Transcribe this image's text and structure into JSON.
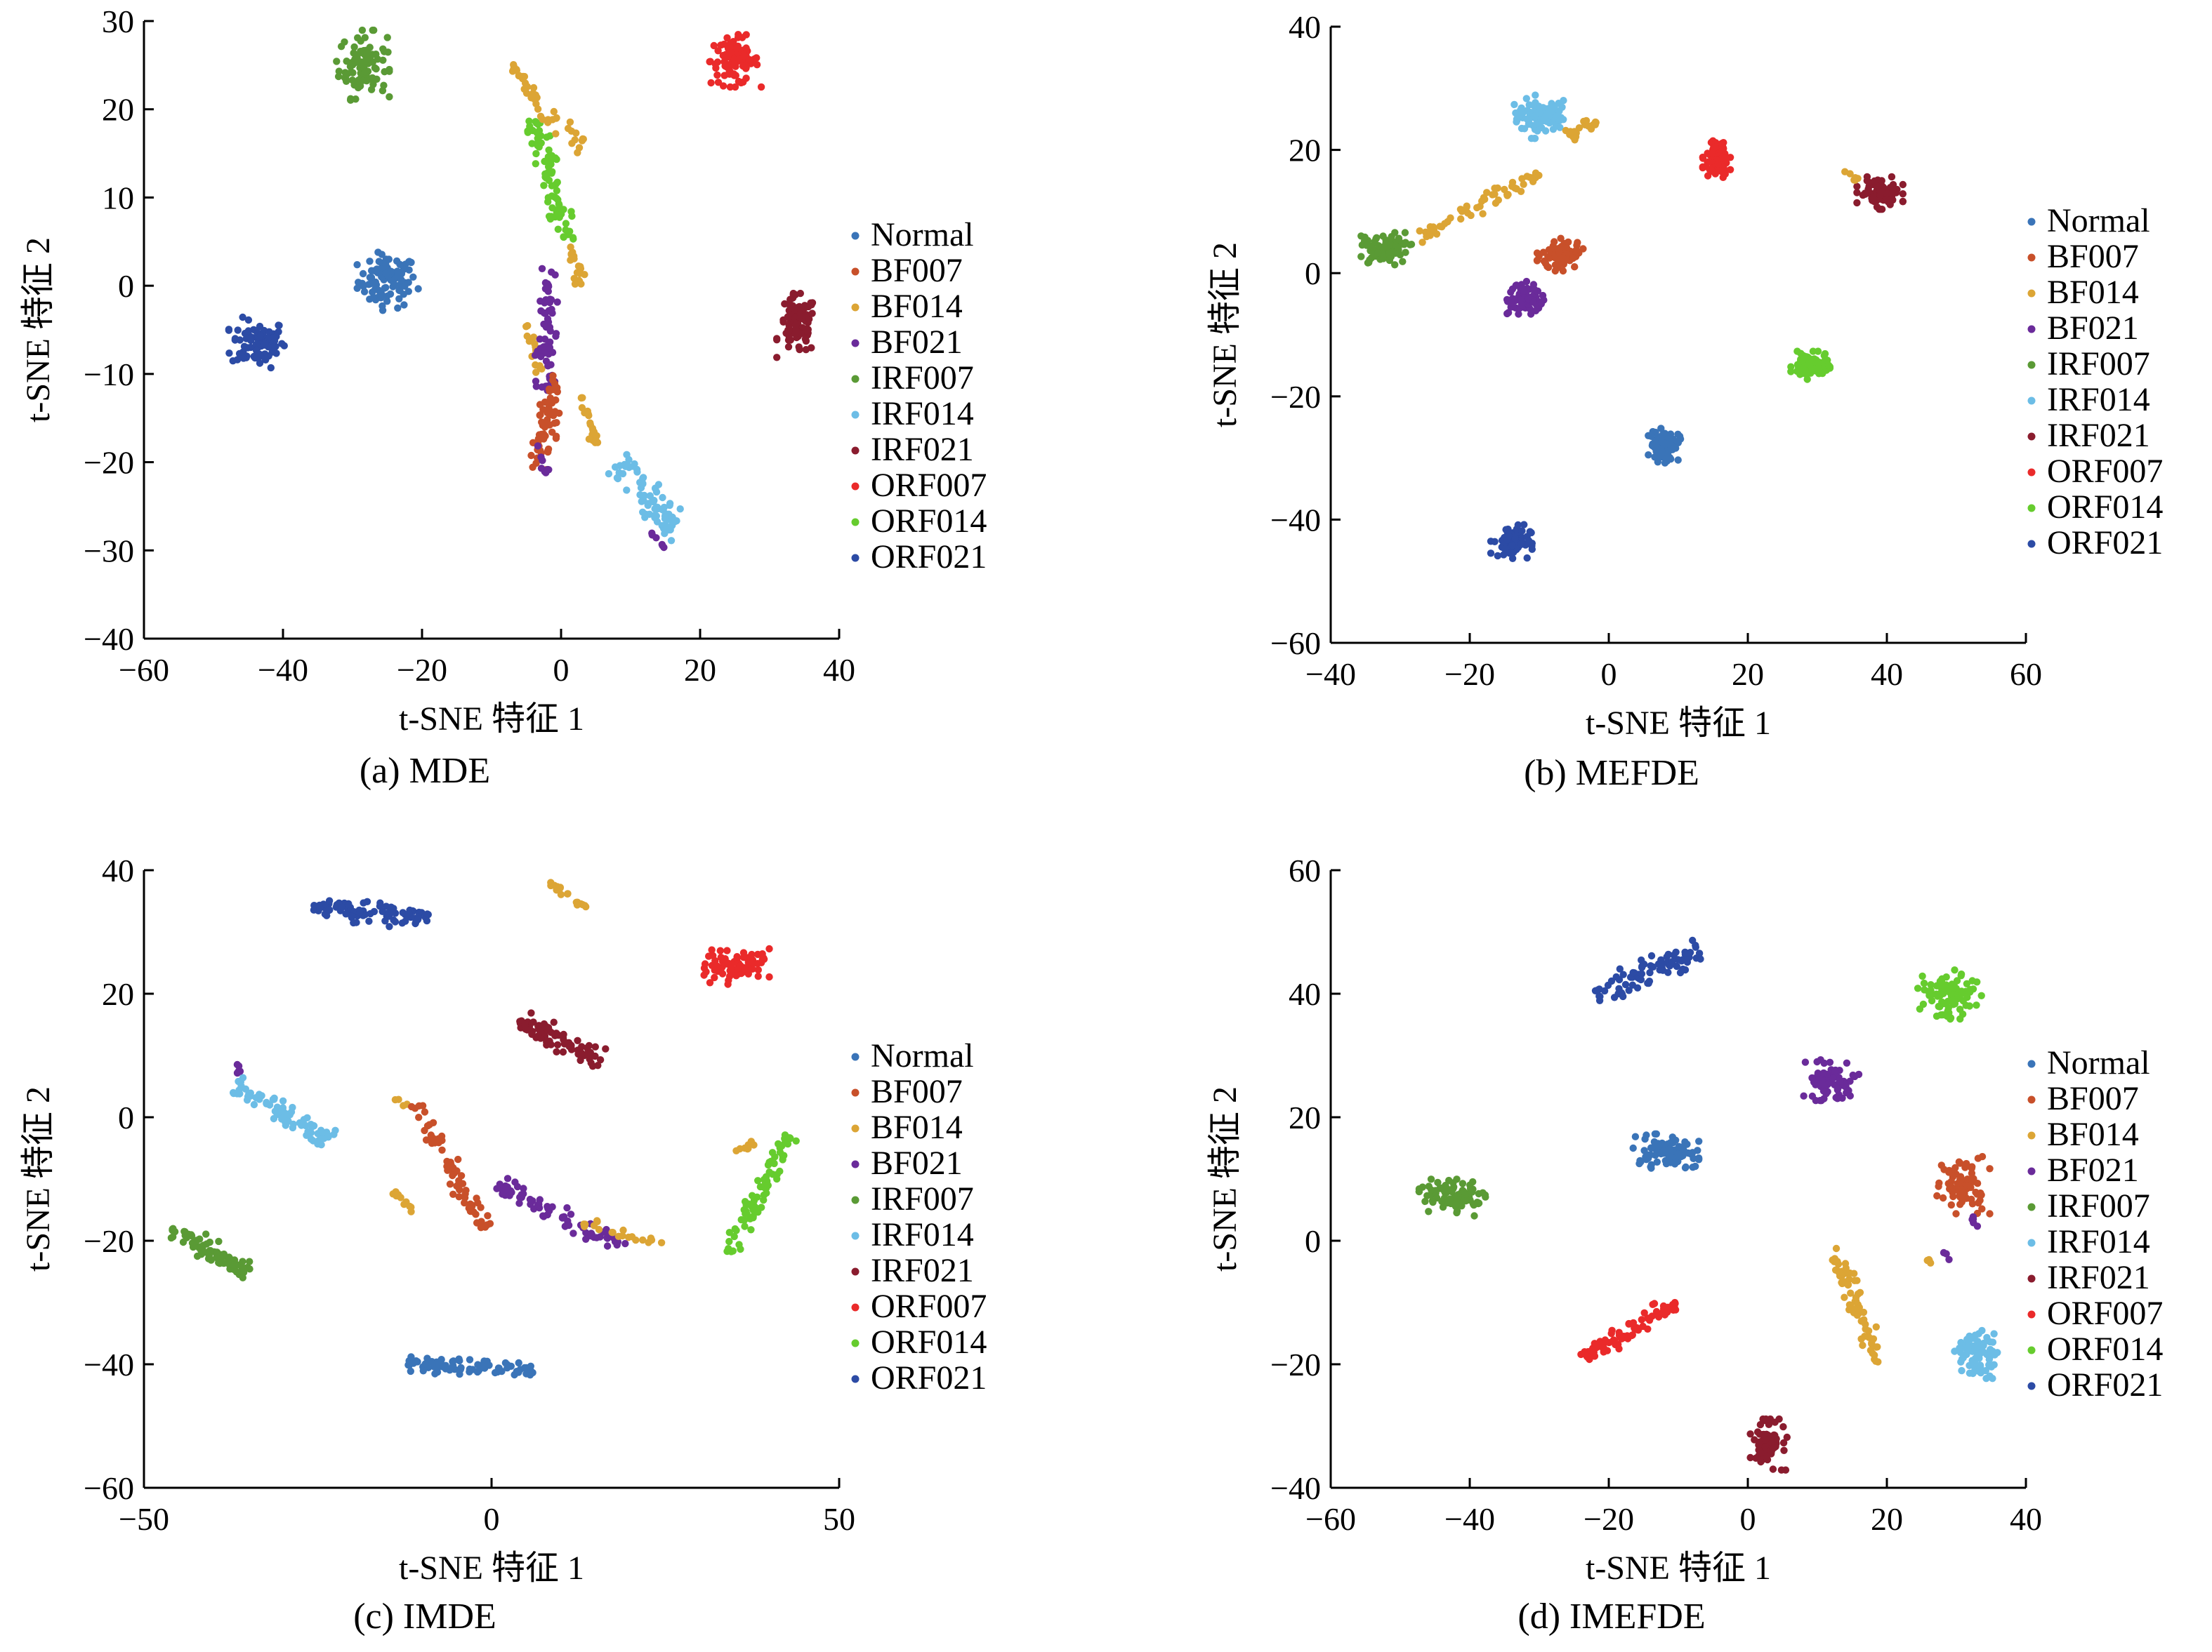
{
  "figure": {
    "series_names": [
      "Normal",
      "BF007",
      "BF014",
      "BF021",
      "IRF007",
      "IRF014",
      "IRF021",
      "ORF007",
      "ORF014",
      "ORF021"
    ],
    "series_colors": [
      "#3a74b8",
      "#c8502a",
      "#dca535",
      "#6a2b9a",
      "#5a9a35",
      "#6cbde6",
      "#8a1c2e",
      "#ea2a2a",
      "#66cc2e",
      "#2c4ba5"
    ]
  },
  "chart_data": [
    {
      "type": "scatter",
      "caption": "(a) MDE",
      "xlabel": "t-SNE 特征 1",
      "ylabel": "t-SNE 特征 2",
      "xlim": [
        -60,
        40
      ],
      "ylim": [
        -40,
        30
      ],
      "xticks": [
        -60,
        -40,
        -20,
        0,
        20,
        40
      ],
      "yticks": [
        -40,
        -30,
        -20,
        -10,
        0,
        10,
        20,
        30
      ],
      "xtick_labels": [
        "−60",
        "−40",
        "−20",
        "0",
        "20",
        "40"
      ],
      "ytick_labels": [
        "−40",
        "−30",
        "−20",
        "−10",
        "0",
        "10",
        "20",
        "30"
      ],
      "legend_position": "right",
      "clusters": [
        {
          "series": "Normal",
          "shape": "blob",
          "cx": -25,
          "cy": 0.5,
          "sx": 2.8,
          "sy": 2.0,
          "n": 90
        },
        {
          "series": "ORF021",
          "shape": "blob",
          "cx": -43.5,
          "cy": -6.5,
          "sx": 2.6,
          "sy": 1.8,
          "n": 90
        },
        {
          "series": "IRF007",
          "shape": "blob",
          "cx": -28.5,
          "cy": 25,
          "sx": 2.3,
          "sy": 2.4,
          "n": 90
        },
        {
          "series": "ORF007",
          "shape": "blob",
          "cx": 25,
          "cy": 25.5,
          "sx": 2.3,
          "sy": 1.8,
          "n": 90
        },
        {
          "series": "IRF021",
          "shape": "blob",
          "cx": 34,
          "cy": -4.5,
          "sx": 1.8,
          "sy": 2.2,
          "n": 90
        },
        {
          "series": "IRF014",
          "shape": "line",
          "x1": 8,
          "y1": -20,
          "x2": 17,
          "y2": -28,
          "w": 1.6,
          "n": 80
        },
        {
          "series": "BF021",
          "shape": "line",
          "x1": 13,
          "y1": -28,
          "x2": 15,
          "y2": -30,
          "w": 0.5,
          "n": 6
        },
        {
          "series": "ORF014",
          "shape": "line",
          "x1": -4,
          "y1": 19,
          "x2": 1,
          "y2": 5,
          "w": 1.2,
          "n": 80
        },
        {
          "series": "BF014",
          "shape": "line",
          "x1": -7,
          "y1": 25,
          "x2": -3,
          "y2": 20,
          "w": 0.6,
          "n": 25
        },
        {
          "series": "BF014",
          "shape": "line",
          "x1": -3,
          "y1": 20,
          "x2": 3,
          "y2": 16,
          "w": 0.9,
          "n": 20
        },
        {
          "series": "BF014",
          "shape": "line",
          "x1": 1,
          "y1": 5,
          "x2": 3,
          "y2": 0,
          "w": 0.8,
          "n": 18
        },
        {
          "series": "BF014",
          "shape": "line",
          "x1": -5,
          "y1": -4,
          "x2": -3,
          "y2": -10,
          "w": 0.7,
          "n": 15
        },
        {
          "series": "BF014",
          "shape": "line",
          "x1": 3,
          "y1": -12,
          "x2": 5,
          "y2": -18,
          "w": 0.7,
          "n": 20
        },
        {
          "series": "BF021",
          "shape": "line",
          "x1": -2,
          "y1": 2,
          "x2": -2,
          "y2": -12,
          "w": 1.3,
          "n": 65
        },
        {
          "series": "BF007",
          "shape": "line",
          "x1": -1,
          "y1": -10,
          "x2": -3,
          "y2": -21,
          "w": 1.2,
          "n": 60
        },
        {
          "series": "BF021",
          "shape": "line",
          "x1": -3,
          "y1": -18,
          "x2": -2,
          "y2": -22,
          "w": 0.6,
          "n": 8
        }
      ]
    },
    {
      "type": "scatter",
      "caption": "(b) MEFDE",
      "xlabel": "t-SNE 特征 1",
      "ylabel": "t-SNE 特征 2",
      "xlim": [
        -40,
        60
      ],
      "ylim": [
        -60,
        40
      ],
      "xticks": [
        -40,
        -20,
        0,
        20,
        40,
        60
      ],
      "yticks": [
        -60,
        -40,
        -20,
        0,
        20,
        40
      ],
      "xtick_labels": [
        "−40",
        "−20",
        "0",
        "20",
        "40",
        "60"
      ],
      "ytick_labels": [
        "−60",
        "−40",
        "−20",
        "0",
        "20",
        "40"
      ],
      "legend_position": "right",
      "clusters": [
        {
          "series": "IRF014",
          "shape": "blob",
          "cx": -10,
          "cy": 25.5,
          "sx": 2.4,
          "sy": 2.2,
          "n": 90
        },
        {
          "series": "BF014",
          "shape": "line",
          "x1": -6,
          "y1": 22,
          "x2": -2,
          "y2": 25,
          "w": 0.8,
          "n": 18
        },
        {
          "series": "BF014",
          "shape": "line",
          "x1": -28,
          "y1": 5,
          "x2": -10,
          "y2": 16,
          "w": 1.1,
          "n": 55
        },
        {
          "series": "IRF007",
          "shape": "blob",
          "cx": -32,
          "cy": 4,
          "sx": 2.2,
          "sy": 1.6,
          "n": 85
        },
        {
          "series": "BF007",
          "shape": "blob",
          "cx": -7,
          "cy": 3,
          "sx": 2.0,
          "sy": 1.6,
          "n": 75
        },
        {
          "series": "BF021",
          "shape": "blob",
          "cx": -12,
          "cy": -4,
          "sx": 1.6,
          "sy": 1.6,
          "n": 65
        },
        {
          "series": "ORF007",
          "shape": "blob",
          "cx": 15.5,
          "cy": 18.5,
          "sx": 1.2,
          "sy": 1.8,
          "n": 85
        },
        {
          "series": "IRF021",
          "shape": "blob",
          "cx": 39,
          "cy": 13,
          "sx": 2.0,
          "sy": 1.6,
          "n": 85
        },
        {
          "series": "BF014",
          "shape": "line",
          "x1": 34,
          "y1": 17,
          "x2": 36,
          "y2": 15,
          "w": 0.5,
          "n": 6
        },
        {
          "series": "ORF014",
          "shape": "blob",
          "cx": 29,
          "cy": -15,
          "sx": 1.7,
          "sy": 1.4,
          "n": 85
        },
        {
          "series": "Normal",
          "shape": "blob",
          "cx": 8,
          "cy": -28,
          "sx": 1.4,
          "sy": 1.7,
          "n": 75
        },
        {
          "series": "ORF021",
          "shape": "blob",
          "cx": -14,
          "cy": -43.5,
          "sx": 1.8,
          "sy": 1.7,
          "n": 75
        }
      ]
    },
    {
      "type": "scatter",
      "caption": "(c) IMDE",
      "xlabel": "t-SNE 特征 1",
      "ylabel": "t-SNE 特征 2",
      "xlim": [
        -50,
        50
      ],
      "ylim": [
        -60,
        40
      ],
      "xticks": [
        -50,
        0,
        50
      ],
      "yticks": [
        -60,
        -40,
        -20,
        0,
        20,
        40
      ],
      "xtick_labels": [
        "−50",
        "0",
        "50"
      ],
      "ytick_labels": [
        "−60",
        "−40",
        "−20",
        "0",
        "20",
        "40"
      ],
      "legend_position": "right",
      "clusters": [
        {
          "series": "ORF021",
          "shape": "line",
          "x1": -26,
          "y1": 34,
          "x2": -9,
          "y2": 32,
          "w": 1.4,
          "n": 85
        },
        {
          "series": "BF014",
          "shape": "line",
          "x1": 8,
          "y1": 38,
          "x2": 14,
          "y2": 34,
          "w": 0.6,
          "n": 18
        },
        {
          "series": "ORF007",
          "shape": "blob",
          "cx": 35,
          "cy": 24.5,
          "sx": 3.0,
          "sy": 1.8,
          "n": 85
        },
        {
          "series": "IRF021",
          "shape": "line",
          "x1": 4,
          "y1": 16,
          "x2": 16,
          "y2": 9,
          "w": 1.5,
          "n": 80
        },
        {
          "series": "IRF014",
          "shape": "line",
          "x1": -37,
          "y1": 5,
          "x2": -23,
          "y2": -4,
          "w": 1.4,
          "n": 80
        },
        {
          "series": "BF021",
          "shape": "line",
          "x1": -37,
          "y1": 9,
          "x2": -36,
          "y2": 7,
          "w": 0.4,
          "n": 5
        },
        {
          "series": "IRF007",
          "shape": "line",
          "x1": -46,
          "y1": -18,
          "x2": -35,
          "y2": -25,
          "w": 1.4,
          "n": 80
        },
        {
          "series": "BF014",
          "shape": "line",
          "x1": -14,
          "y1": -12,
          "x2": -11,
          "y2": -15,
          "w": 0.6,
          "n": 10
        },
        {
          "series": "BF014",
          "shape": "line",
          "x1": -14,
          "y1": 3,
          "x2": -12,
          "y2": 2,
          "w": 0.4,
          "n": 4
        },
        {
          "series": "BF007",
          "shape": "line",
          "x1": -11,
          "y1": 2,
          "x2": -1,
          "y2": -18,
          "w": 1.2,
          "n": 65
        },
        {
          "series": "BF021",
          "shape": "line",
          "x1": 1,
          "y1": -11,
          "x2": 19,
          "y2": -21,
          "w": 1.2,
          "n": 70
        },
        {
          "series": "BF014",
          "shape": "line",
          "x1": 13,
          "y1": -17,
          "x2": 25,
          "y2": -21,
          "w": 0.7,
          "n": 20
        },
        {
          "series": "BF014",
          "shape": "line",
          "x1": 35,
          "y1": -6,
          "x2": 38,
          "y2": -4,
          "w": 0.5,
          "n": 8
        },
        {
          "series": "ORF014",
          "shape": "line",
          "x1": 34,
          "y1": -22,
          "x2": 43,
          "y2": -3,
          "w": 1.2,
          "n": 75
        },
        {
          "series": "Normal",
          "shape": "line",
          "x1": -12,
          "y1": -40,
          "x2": 6,
          "y2": -41,
          "w": 1.0,
          "n": 80
        }
      ]
    },
    {
      "type": "scatter",
      "caption": "(d) IMEFDE",
      "xlabel": "t-SNE 特征 1",
      "ylabel": "t-SNE 特征 2",
      "xlim": [
        -60,
        40
      ],
      "ylim": [
        -40,
        60
      ],
      "xticks": [
        -60,
        -40,
        -20,
        0,
        20,
        40
      ],
      "yticks": [
        -40,
        -20,
        0,
        20,
        40,
        60
      ],
      "xtick_labels": [
        "−60",
        "−40",
        "−20",
        "0",
        "20",
        "40"
      ],
      "ytick_labels": [
        "−40",
        "−20",
        "0",
        "20",
        "40",
        "60"
      ],
      "legend_position": "right",
      "clusters": [
        {
          "series": "ORF021",
          "shape": "line",
          "x1": -22,
          "y1": 40,
          "x2": -7,
          "y2": 47,
          "w": 1.6,
          "n": 85
        },
        {
          "series": "ORF014",
          "shape": "blob",
          "cx": 29,
          "cy": 40,
          "sx": 3.0,
          "sy": 2.5,
          "n": 85
        },
        {
          "series": "BF021",
          "shape": "blob",
          "cx": 12,
          "cy": 26,
          "sx": 2.4,
          "sy": 2.0,
          "n": 75
        },
        {
          "series": "Normal",
          "shape": "blob",
          "cx": -12,
          "cy": 14,
          "sx": 3.0,
          "sy": 2.0,
          "n": 85
        },
        {
          "series": "IRF007",
          "shape": "blob",
          "cx": -42,
          "cy": 7,
          "sx": 3.2,
          "sy": 1.8,
          "n": 85
        },
        {
          "series": "BF007",
          "shape": "blob",
          "cx": 31,
          "cy": 9,
          "sx": 2.3,
          "sy": 2.8,
          "n": 80
        },
        {
          "series": "BF021",
          "shape": "line",
          "x1": 32,
          "y1": 5,
          "x2": 33,
          "y2": 2,
          "w": 0.4,
          "n": 5
        },
        {
          "series": "BF021",
          "shape": "line",
          "x1": 28,
          "y1": -2,
          "x2": 29,
          "y2": -3,
          "w": 0.3,
          "n": 3
        },
        {
          "series": "BF014",
          "shape": "line",
          "x1": 26,
          "y1": -3,
          "x2": 27,
          "y2": -5,
          "w": 0.3,
          "n": 4
        },
        {
          "series": "BF014",
          "shape": "line",
          "x1": 12,
          "y1": -1,
          "x2": 19,
          "y2": -20,
          "w": 1.2,
          "n": 70
        },
        {
          "series": "IRF014",
          "shape": "blob",
          "cx": 33,
          "cy": -18,
          "sx": 2.0,
          "sy": 2.6,
          "n": 80
        },
        {
          "series": "ORF007",
          "shape": "line",
          "x1": -24,
          "y1": -19,
          "x2": -10,
          "y2": -10,
          "w": 1.3,
          "n": 80
        },
        {
          "series": "IRF021",
          "shape": "blob",
          "cx": 3,
          "cy": -33,
          "sx": 1.6,
          "sy": 2.5,
          "n": 80
        }
      ]
    }
  ]
}
